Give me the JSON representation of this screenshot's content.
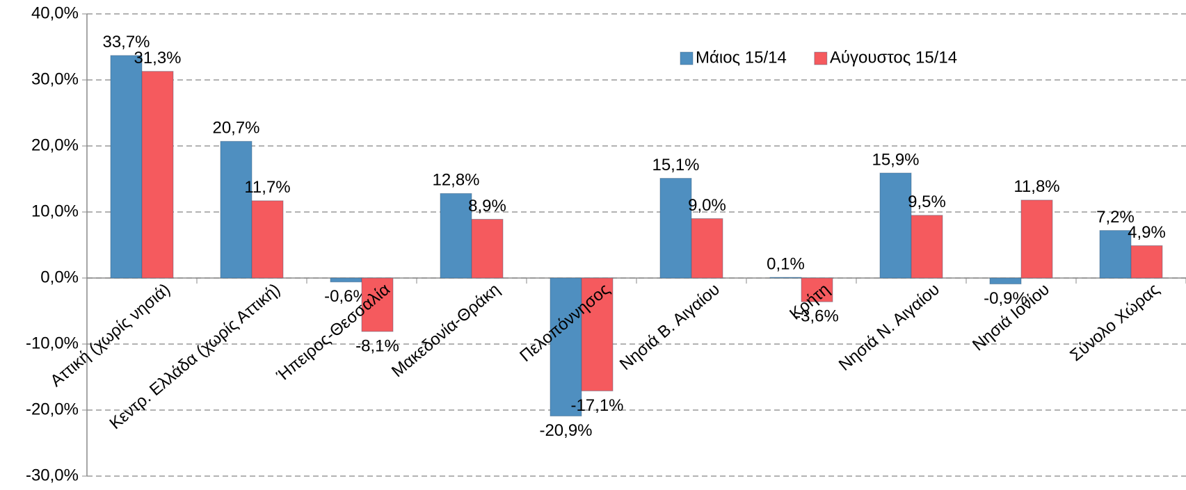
{
  "chart_data": {
    "type": "bar",
    "categories": [
      "Αττική (χωρίς νησιά)",
      "Κεντρ. Ελλάδα (χωρίς Αττική)",
      "Ήπειρος-Θεσσαλία",
      "Μακεδονία-Θράκη",
      "Πελοπόννησος",
      "Νησιά Β. Αιγαίου",
      "Κρήτη",
      "Νησιά Ν. Αιγαίου",
      "Νησιά Ιονίου",
      "Σύνολο Χώρας"
    ],
    "series": [
      {
        "name": "Μάιος 15/14",
        "color": "#4f8fc0",
        "values": [
          33.7,
          20.7,
          -0.6,
          12.8,
          -20.9,
          15.1,
          0.1,
          15.9,
          -0.9,
          7.2
        ],
        "value_labels": [
          "33,7%",
          "20,7%",
          "-0,6%",
          "12,8%",
          "-20,9%",
          "15,1%",
          "0,1%",
          "15,9%",
          "-0,9%",
          "7,2%"
        ]
      },
      {
        "name": "Αύγουστος 15/14",
        "color": "#f55a5e",
        "values": [
          31.3,
          11.7,
          -8.1,
          8.9,
          -17.1,
          9.0,
          -3.6,
          9.5,
          11.8,
          4.9
        ],
        "value_labels": [
          "31,3%",
          "11,7%",
          "-8,1%",
          "8,9%",
          "-17,1%",
          "9,0%",
          "-3,6%",
          "9,5%",
          "11,8%",
          "4,9%"
        ]
      }
    ],
    "ylim": [
      -30,
      40
    ],
    "yticks": [
      {
        "value": -30,
        "label": "-30,0%"
      },
      {
        "value": -20,
        "label": "-20,0%"
      },
      {
        "value": -10,
        "label": "-10,0%"
      },
      {
        "value": 0,
        "label": "0,0%"
      },
      {
        "value": 10,
        "label": "10,0%"
      },
      {
        "value": 20,
        "label": "20,0%"
      },
      {
        "value": 30,
        "label": "30,0%"
      },
      {
        "value": 40,
        "label": "40,0%"
      }
    ],
    "grid": true,
    "legend": "top-right"
  }
}
